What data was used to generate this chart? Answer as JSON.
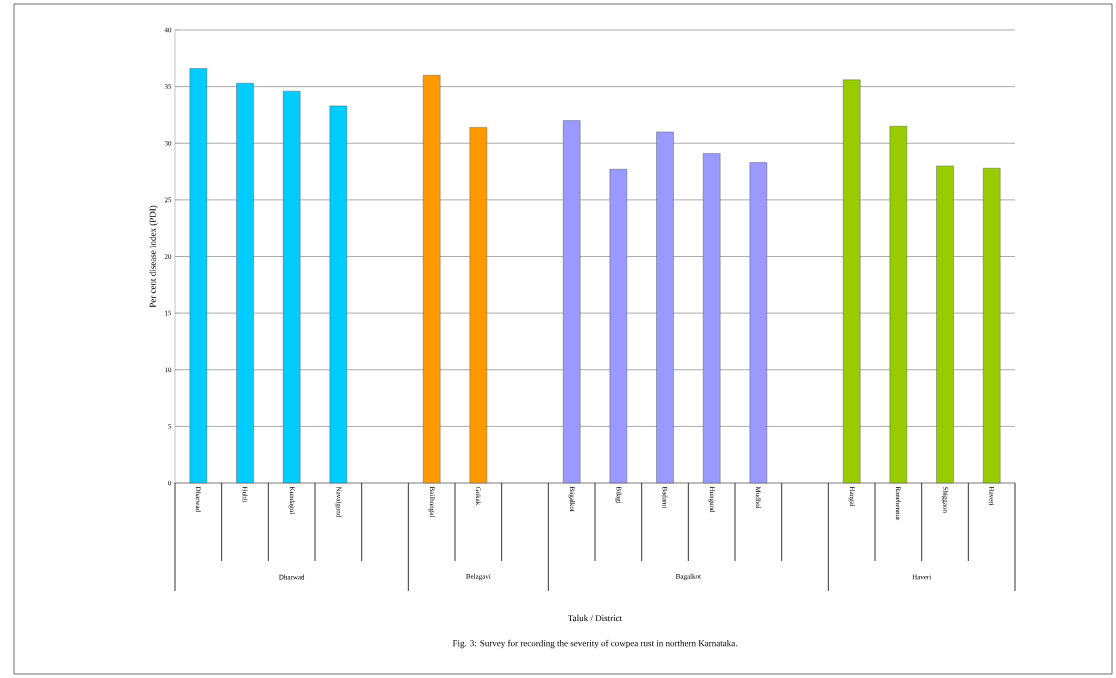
{
  "chart_data": {
    "type": "bar",
    "ylabel": "Per cent disease index (PDI)",
    "categories": [
      "Dharwad",
      "Hubli",
      "Kundagol",
      "Navalgund",
      null,
      "Bailhongal",
      "Gokak",
      null,
      "Bagalkot",
      "Bilagi",
      "Badami",
      "Hungund",
      "Mudhol",
      null,
      "Hangal",
      "Ranebennur",
      "Shiggaon",
      "Haveri"
    ],
    "values": [
      36.6,
      35.3,
      34.6,
      33.3,
      null,
      36.0,
      31.4,
      null,
      32.0,
      27.7,
      31.0,
      29.1,
      28.3,
      null,
      35.6,
      31.5,
      28.0,
      27.8
    ],
    "colors": [
      "#00ccff",
      "#00ccff",
      "#00ccff",
      "#00ccff",
      null,
      "#ff9900",
      "#ff9900",
      null,
      "#9999ff",
      "#9999ff",
      "#9999ff",
      "#9999ff",
      "#9999ff",
      null,
      "#99cc00",
      "#99cc00",
      "#99cc00",
      "#99cc00"
    ],
    "ylim": [
      0,
      40
    ],
    "yticks": [
      0,
      5,
      10,
      15,
      20,
      25,
      30,
      35,
      40
    ],
    "grid": "y",
    "annotations": [
      "Dharwad",
      "Belagavi",
      "Bagalkot",
      "Haveri",
      "Taluk / District",
      "Fig. 3: Survey for recording the severity of cowpea rust in northern Karnataka."
    ]
  }
}
